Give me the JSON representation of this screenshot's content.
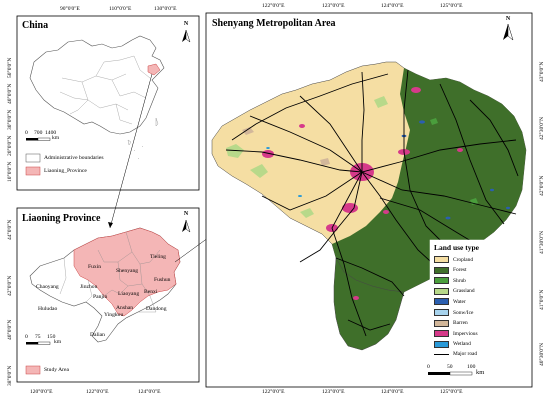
{
  "china_panel": {
    "title": "China",
    "lon_ticks": [
      "90°0'0\"E",
      "110°0'0\"E",
      "130°0'0\"E"
    ],
    "lat_ticks": [
      "50°0'0\"N",
      "40°0'0\"N",
      "30°0'0\"N",
      "20°0'0\"N",
      "10°0'0\"N"
    ],
    "scale_labels": [
      "0",
      "700",
      "1400"
    ],
    "scale_unit": "km",
    "legend": [
      {
        "label": "Administrative boundaries",
        "color": "#ffffff"
      },
      {
        "label": "Liaoning_Province",
        "color": "#f4b6b6"
      }
    ],
    "north": "N"
  },
  "liaoning_panel": {
    "title": "Liaoning Province",
    "lon_ticks": [
      "120°0'0\"E",
      "122°0'0\"E",
      "124°0'0\"E"
    ],
    "lat_ticks": [
      "44°0'0\"N",
      "42°0'0\"N",
      "40°0'0\"N",
      "38°0'0\"N"
    ],
    "cities": [
      "Tieling",
      "Fuxin",
      "Shenyang",
      "Fushun",
      "Chaoyang",
      "Jinzhou",
      "Panjin",
      "Liaoyang",
      "Benxi",
      "Huludao",
      "Anshan",
      "Yingkou",
      "Dandong",
      "Dalian"
    ],
    "scale_labels": [
      "0",
      "75",
      "150"
    ],
    "scale_unit": "km",
    "legend": [
      {
        "label": "Study Area",
        "color": "#f4b6b6"
      }
    ],
    "north": "N"
  },
  "shenyang_panel": {
    "title": "Shenyang Metropolitan Area",
    "lon_ticks": [
      "122°0'0\"E",
      "123°0'0\"E",
      "124°0'0\"E",
      "125°0'0\"E"
    ],
    "lat_ticks": [
      "43°0'0\"N",
      "42°30'0\"N",
      "42°0'0\"N",
      "41°30'0\"N",
      "41°0'0\"N",
      "40°30'0\"N"
    ],
    "legend_title": "Land use type",
    "legend": [
      {
        "label": "Cropland",
        "color": "#f5dea3"
      },
      {
        "label": "Forest",
        "color": "#3f6f2a"
      },
      {
        "label": "Shrub",
        "color": "#4a9e3c"
      },
      {
        "label": "Grassland",
        "color": "#b8d98a"
      },
      {
        "label": "Water",
        "color": "#2b5fb0"
      },
      {
        "label": "Sonw/Ice",
        "color": "#a8d4ee"
      },
      {
        "label": "Barren",
        "color": "#d2b79a"
      },
      {
        "label": "Impervious",
        "color": "#d63a8a"
      },
      {
        "label": "Wetland",
        "color": "#2a9ad8"
      },
      {
        "label": "Major road",
        "color": "#000000"
      }
    ],
    "scale_labels": [
      "0",
      "50",
      "100"
    ],
    "scale_unit": "km",
    "north": "N"
  }
}
